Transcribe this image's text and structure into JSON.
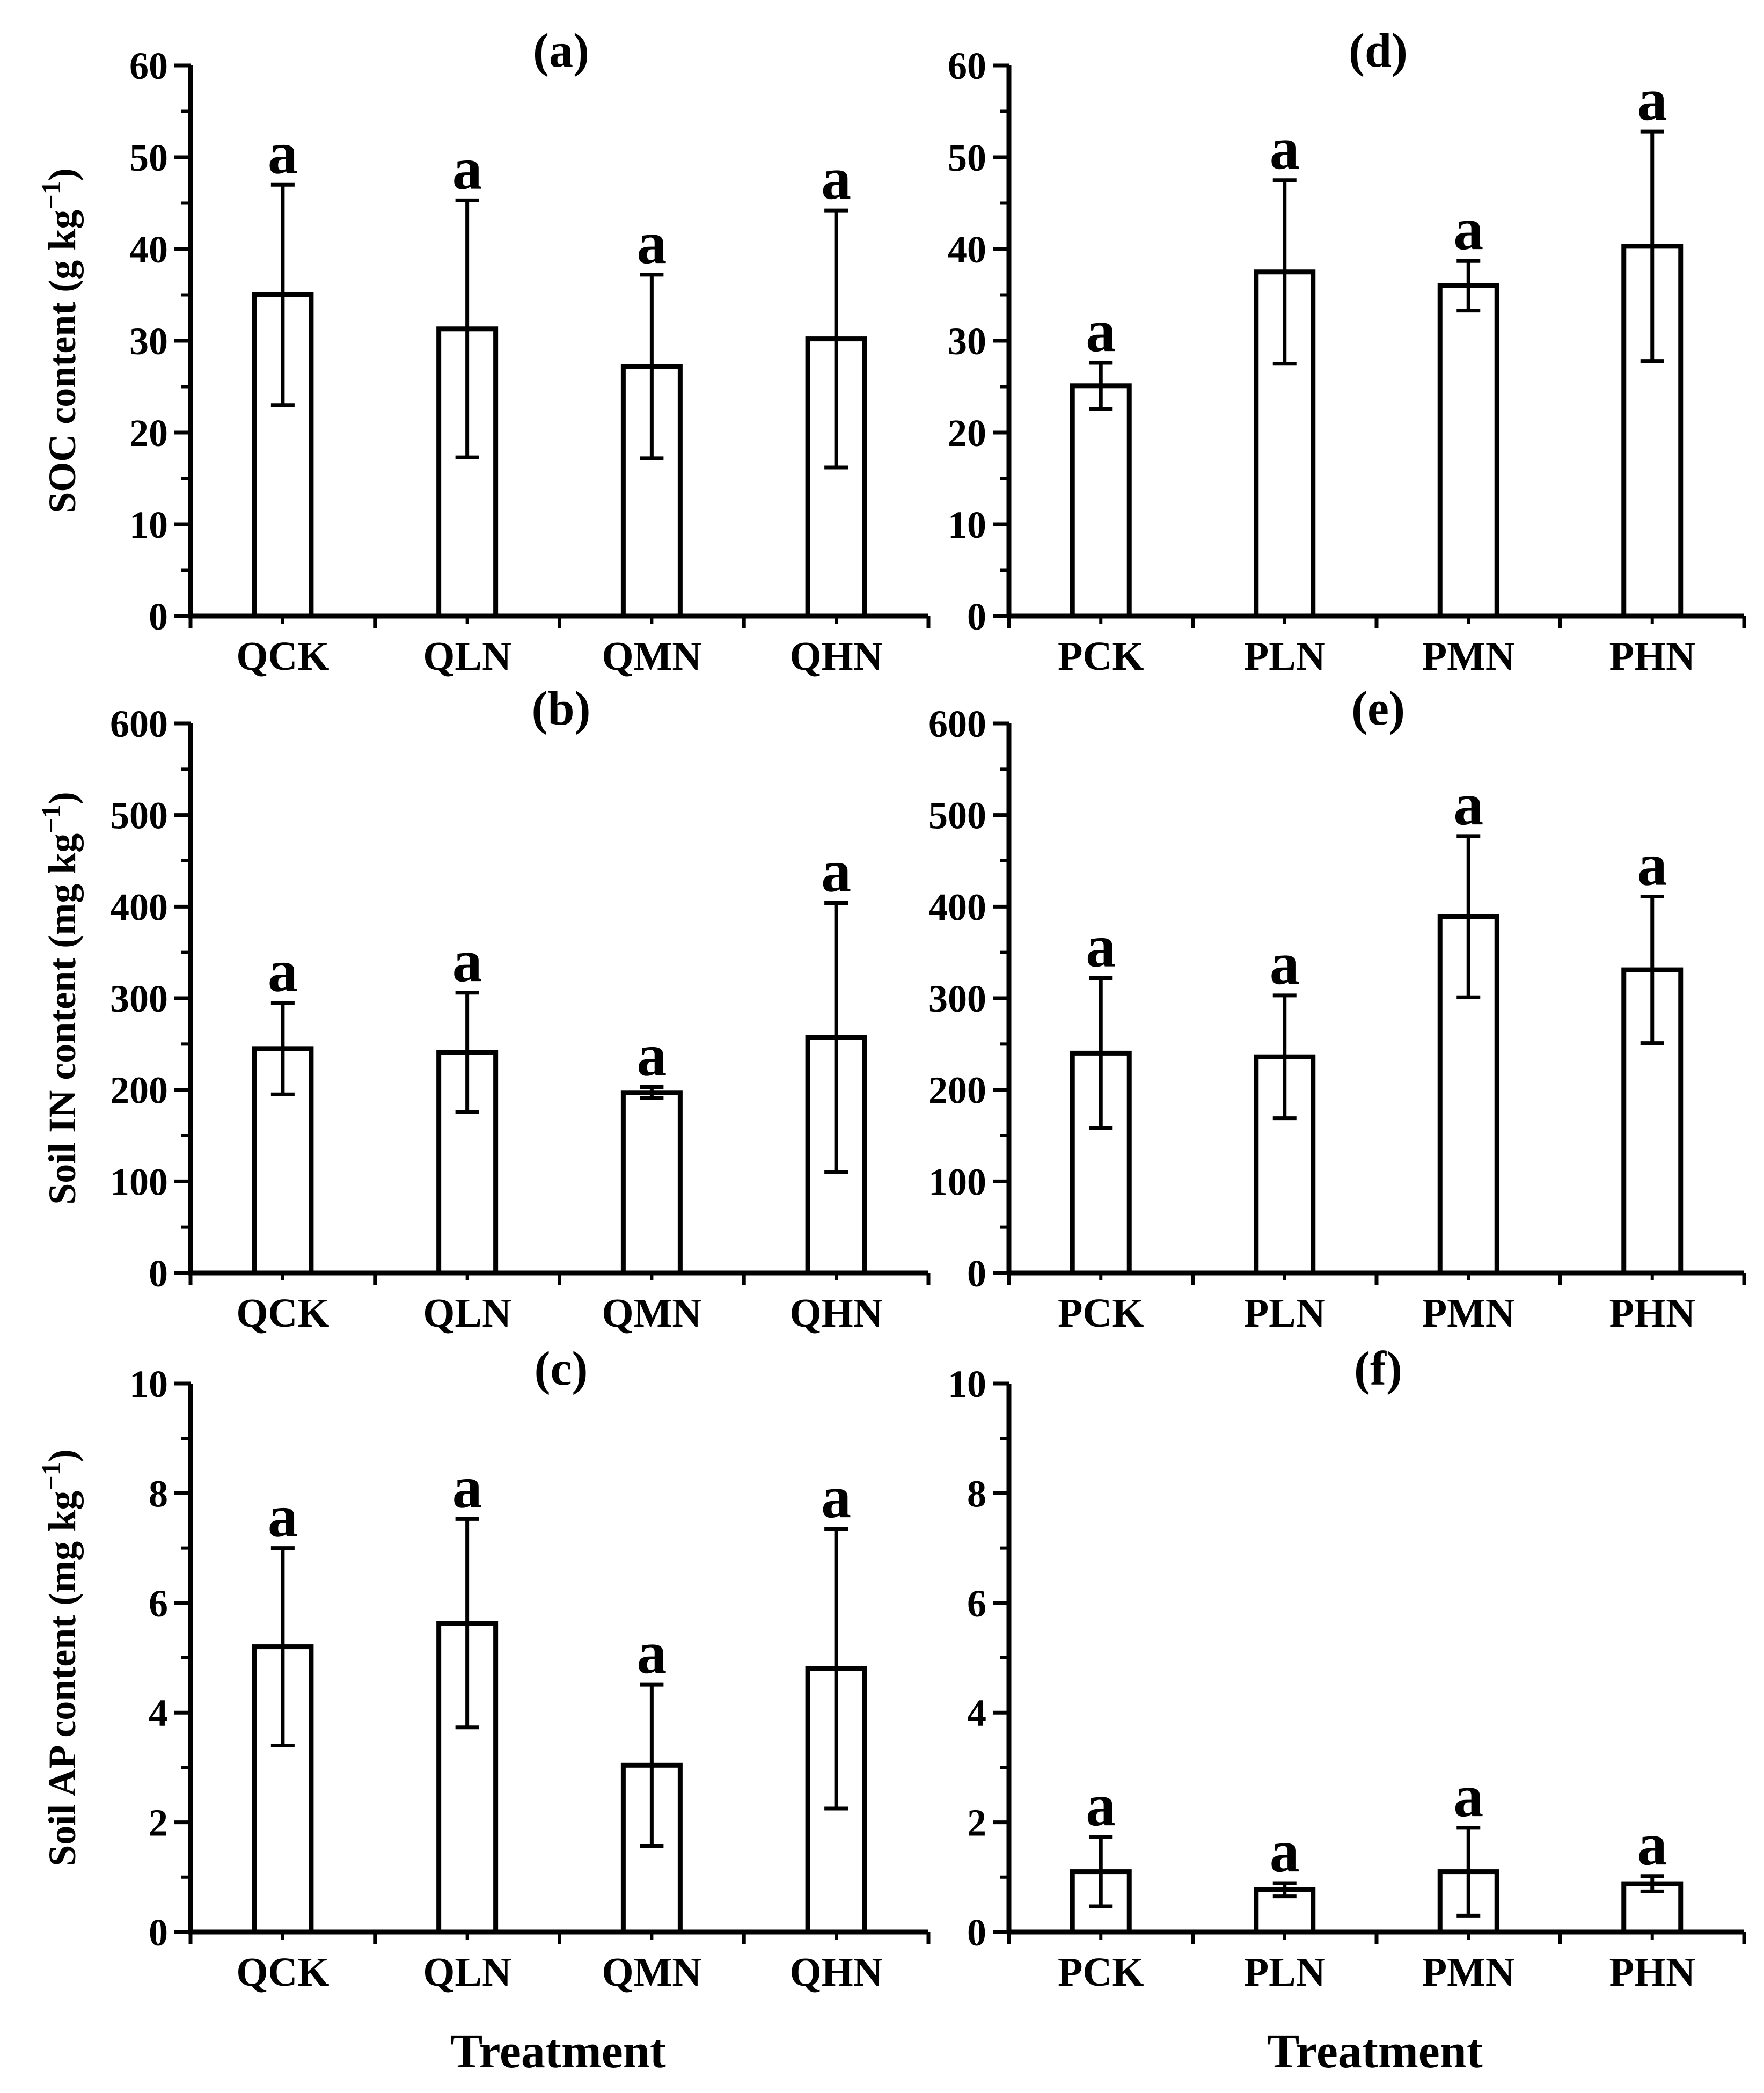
{
  "figure": {
    "xlabels": [
      "Treatment",
      "Treatment"
    ]
  },
  "chart_data": [
    {
      "id": "a",
      "type": "bar",
      "title": "(a)",
      "ylabel": "SOC content (g kg",
      "ylabel_sup": "−1",
      "ylabel_close": ")",
      "ylim": [
        0,
        60
      ],
      "yticks": [
        0,
        10,
        20,
        30,
        40,
        50,
        60
      ],
      "categories": [
        "QCK",
        "QLN",
        "QMN",
        "QHN"
      ],
      "values": [
        35,
        31.3,
        27.2,
        30.2
      ],
      "errors": [
        12,
        14,
        10,
        14
      ],
      "letters": [
        "a",
        "a",
        "a",
        "a"
      ]
    },
    {
      "id": "b",
      "type": "bar",
      "title": "(b)",
      "ylabel": "Soil IN content (mg kg",
      "ylabel_sup": "−1",
      "ylabel_close": ")",
      "ylim": [
        0,
        600
      ],
      "yticks": [
        0,
        100,
        200,
        300,
        400,
        500,
        600
      ],
      "categories": [
        "QCK",
        "QLN",
        "QMN",
        "QHN"
      ],
      "values": [
        245,
        241,
        197,
        257
      ],
      "errors": [
        50,
        65,
        6,
        147
      ],
      "letters": [
        "a",
        "a",
        "a",
        "a"
      ]
    },
    {
      "id": "c",
      "type": "bar",
      "title": "(c)",
      "ylabel": "Soil AP content (mg kg",
      "ylabel_sup": "−1",
      "ylabel_close": ")",
      "ylim": [
        0,
        10
      ],
      "yticks": [
        0,
        2,
        4,
        6,
        8,
        10
      ],
      "categories": [
        "QCK",
        "QLN",
        "QMN",
        "QHN"
      ],
      "values": [
        5.2,
        5.63,
        3.04,
        4.8
      ],
      "errors": [
        1.8,
        1.9,
        1.47,
        2.55
      ],
      "letters": [
        "a",
        "a",
        "a",
        "a"
      ]
    },
    {
      "id": "d",
      "type": "bar",
      "title": "(d)",
      "ylabel": "",
      "ylabel_sup": "",
      "ylabel_close": "",
      "ylim": [
        0,
        60
      ],
      "yticks": [
        0,
        10,
        20,
        30,
        40,
        50,
        60
      ],
      "categories": [
        "PCK",
        "PLN",
        "PMN",
        "PHN"
      ],
      "values": [
        25.1,
        37.5,
        36,
        40.3
      ],
      "errors": [
        2.5,
        10,
        2.7,
        12.5
      ],
      "letters": [
        "a",
        "a",
        "a",
        "a"
      ]
    },
    {
      "id": "e",
      "type": "bar",
      "title": "(e)",
      "ylabel": "",
      "ylabel_sup": "",
      "ylabel_close": "",
      "ylim": [
        0,
        600
      ],
      "yticks": [
        0,
        100,
        200,
        300,
        400,
        500,
        600
      ],
      "categories": [
        "PCK",
        "PLN",
        "PMN",
        "PHN"
      ],
      "values": [
        240,
        236,
        389,
        331
      ],
      "errors": [
        82,
        67,
        88,
        80
      ],
      "letters": [
        "a",
        "a",
        "a",
        "a"
      ]
    },
    {
      "id": "f",
      "type": "bar",
      "title": "(f)",
      "ylabel": "",
      "ylabel_sup": "",
      "ylabel_close": "",
      "ylim": [
        0,
        10
      ],
      "yticks": [
        0,
        2,
        4,
        6,
        8,
        10
      ],
      "categories": [
        "PCK",
        "PLN",
        "PMN",
        "PHN"
      ],
      "values": [
        1.1,
        0.77,
        1.1,
        0.88
      ],
      "errors": [
        0.63,
        0.12,
        0.8,
        0.14
      ],
      "letters": [
        "a",
        "a",
        "a",
        "a"
      ]
    }
  ]
}
